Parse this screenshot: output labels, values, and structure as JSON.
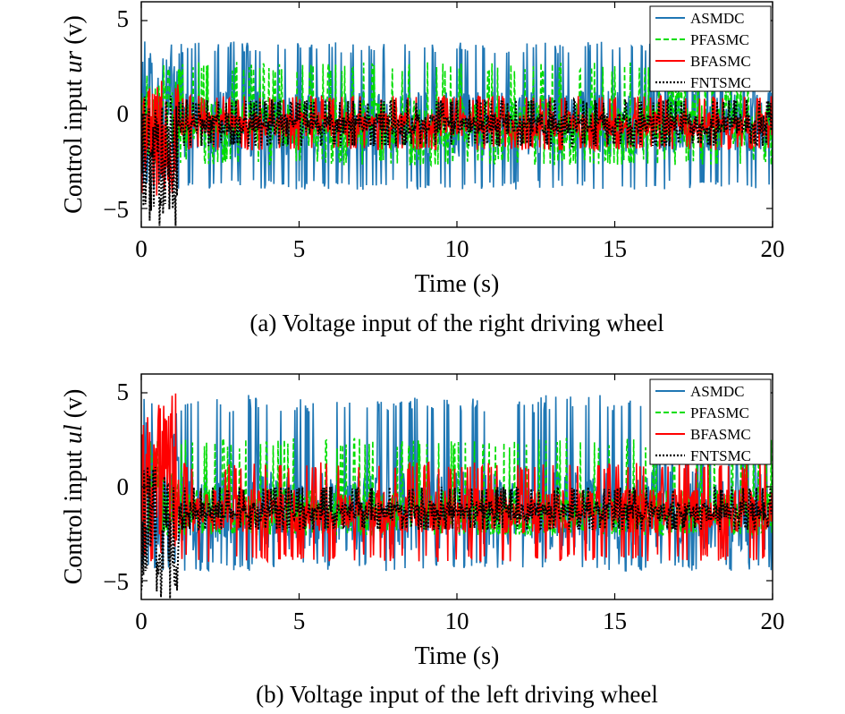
{
  "figure": {
    "panels": [
      {
        "caption": "(a) Voltage input of the right driving wheel",
        "ylabel_prefix": "Control input ",
        "ylabel_var": "ur",
        "ylabel_unit": " (v)",
        "xlabel": "Time (s)",
        "xticks": [
          "0",
          "5",
          "10",
          "15",
          "20"
        ],
        "yticks": [
          "5",
          "0",
          "−5"
        ],
        "legend": [
          "ASMDC",
          "PFASMC",
          "BFASMC",
          "FNTSMC"
        ]
      },
      {
        "caption": "(b) Voltage input of the left driving wheel",
        "ylabel_prefix": "Control input ",
        "ylabel_var": "ul",
        "ylabel_unit": " (v)",
        "xlabel": "Time (s)",
        "xticks": [
          "0",
          "5",
          "10",
          "15",
          "20"
        ],
        "yticks": [
          "5",
          "0",
          "−5"
        ],
        "legend": [
          "ASMDC",
          "PFASMC",
          "BFASMC",
          "FNTSMC"
        ]
      }
    ]
  },
  "chart_data": [
    {
      "type": "line",
      "title": "(a) Voltage input of the right driving wheel",
      "xlabel": "Time (s)",
      "ylabel": "Control input ur (v)",
      "xlim": [
        0,
        20
      ],
      "ylim": [
        -6,
        6
      ],
      "xticks": [
        0,
        5,
        10,
        15,
        20
      ],
      "yticks": [
        -5,
        0,
        5
      ],
      "grid": false,
      "legend_position": "top-right",
      "series": [
        {
          "name": "ASMDC",
          "color": "#1f77b4",
          "style": "solid",
          "envelope_after_1s": [
            -4.0,
            3.9
          ],
          "center": -0.5,
          "x_range": [
            0,
            20
          ]
        },
        {
          "name": "PFASMC",
          "color": "#00dd00",
          "style": "dashed",
          "envelope_after_1s": [
            -2.7,
            2.8
          ],
          "center": -0.5,
          "x_range": [
            0,
            20
          ]
        },
        {
          "name": "BFASMC",
          "color": "#ff0000",
          "style": "solid",
          "envelope_after_1s": [
            -1.9,
            1.0
          ],
          "center": -0.5,
          "transient_range": [
            -4.5,
            2.0
          ],
          "x_range": [
            0,
            20
          ]
        },
        {
          "name": "FNTSMC",
          "color": "#000000",
          "style": "dotted",
          "envelope_after_1s": [
            -1.7,
            0.8
          ],
          "center": -0.5,
          "transient_range": [
            -6.0,
            1.0
          ],
          "x_range": [
            0,
            20
          ]
        }
      ]
    },
    {
      "type": "line",
      "title": "(b) Voltage input of the left driving wheel",
      "xlabel": "Time (s)",
      "ylabel": "Control input ul (v)",
      "xlim": [
        0,
        20
      ],
      "ylim": [
        -6,
        6
      ],
      "xticks": [
        0,
        5,
        10,
        15,
        20
      ],
      "yticks": [
        -5,
        0,
        5
      ],
      "grid": false,
      "legend_position": "top-right",
      "series": [
        {
          "name": "ASMDC",
          "color": "#1f77b4",
          "style": "solid",
          "envelope_after_1s": [
            -4.5,
            4.9
          ],
          "center": -1.3,
          "x_range": [
            0,
            20
          ]
        },
        {
          "name": "PFASMC",
          "color": "#00dd00",
          "style": "dashed",
          "envelope_after_1s": [
            -2.6,
            2.6
          ],
          "center": -1.3,
          "x_range": [
            0,
            20
          ]
        },
        {
          "name": "BFASMC",
          "color": "#ff0000",
          "style": "solid",
          "envelope_after_1s": [
            -4.0,
            1.3
          ],
          "center": -1.3,
          "transient_range": [
            -4.0,
            5.0
          ],
          "x_range": [
            0,
            20
          ]
        },
        {
          "name": "FNTSMC",
          "color": "#000000",
          "style": "dotted",
          "envelope_after_1s": [
            -2.3,
            0.0
          ],
          "center": -1.3,
          "transient_range": [
            -6.0,
            1.2
          ],
          "x_range": [
            0,
            20
          ]
        }
      ]
    }
  ]
}
